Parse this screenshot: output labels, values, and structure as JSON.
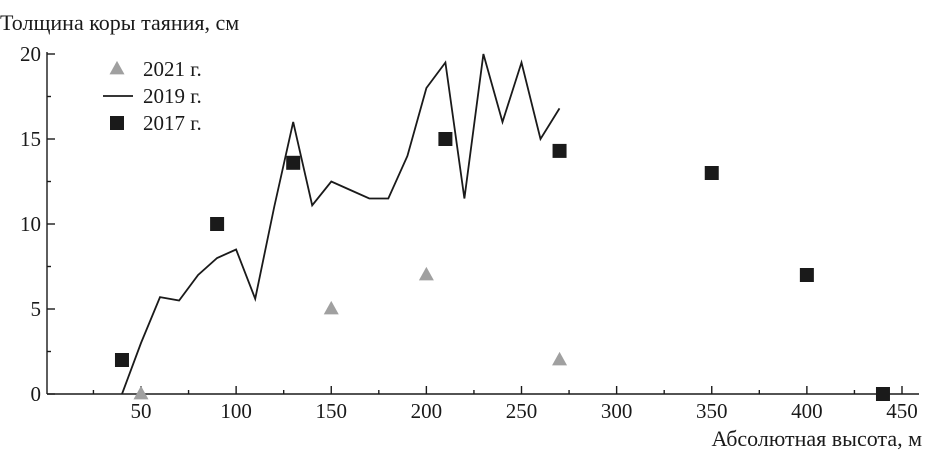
{
  "chart_data": {
    "type": "scatter",
    "title": "Толщина коры таяния, см",
    "xlabel": "Абсолютная высота, м",
    "ylabel": "Толщина коры таяния, см",
    "xlim": [
      0,
      460
    ],
    "ylim": [
      0,
      20
    ],
    "xticks": [
      50,
      100,
      150,
      200,
      250,
      300,
      350,
      400,
      450
    ],
    "yticks": [
      0,
      5,
      10,
      15,
      20
    ],
    "grid": false,
    "legend_position": "top-left",
    "series": [
      {
        "name": "2021 г.",
        "type": "scatter",
        "marker": "triangle",
        "color": "#a0a0a0",
        "x": [
          50,
          150,
          200,
          270
        ],
        "y": [
          0,
          5,
          7,
          2
        ]
      },
      {
        "name": "2019 г.",
        "type": "line",
        "color": "#1a1a1a",
        "x": [
          40,
          50,
          60,
          70,
          80,
          90,
          100,
          110,
          120,
          130,
          140,
          150,
          160,
          170,
          180,
          190,
          200,
          210,
          220,
          230,
          240,
          250,
          260,
          270
        ],
        "y": [
          0,
          3,
          5.7,
          5.5,
          7,
          8,
          8.5,
          5.6,
          11,
          16,
          11.1,
          12.5,
          12,
          11.5,
          11.5,
          14,
          18,
          19.5,
          11.5,
          20,
          16,
          19.5,
          15,
          16.8
        ]
      },
      {
        "name": "2017 г.",
        "type": "scatter",
        "marker": "square",
        "color": "#1a1a1a",
        "x": [
          40,
          90,
          130,
          210,
          270,
          350,
          400,
          440
        ],
        "y": [
          2,
          10,
          13.6,
          15,
          14.3,
          13,
          7,
          0
        ]
      }
    ]
  }
}
